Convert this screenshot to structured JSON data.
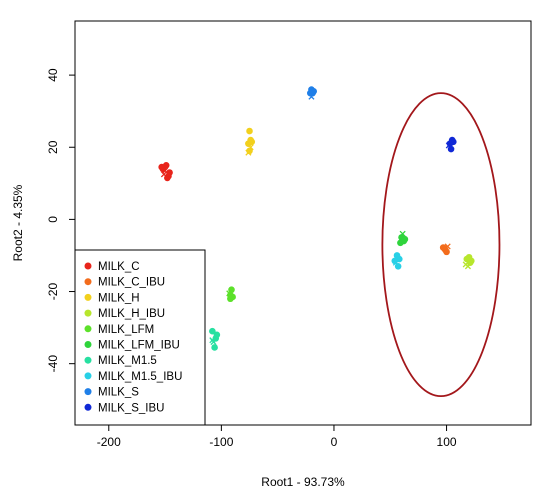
{
  "chart_data": {
    "type": "scatter",
    "title": "",
    "xlabel": "Root1 - 93.73%",
    "ylabel": "Root2 - 4.35%",
    "xlim": [
      -230,
      175
    ],
    "ylim": [
      -57,
      55
    ],
    "xticks": [
      -200,
      -100,
      0,
      100
    ],
    "yticks": [
      -40,
      -20,
      0,
      20,
      40
    ],
    "grid": false,
    "legend_position": "bottom-left",
    "series": [
      {
        "name": "MILK_C",
        "color": "#e8241b",
        "points": [
          [
            -152,
            14
          ],
          [
            -149,
            15
          ],
          [
            -151,
            12.5
          ],
          [
            -148,
            11.5
          ],
          [
            -146,
            13
          ],
          [
            -150,
            13.5
          ],
          [
            -153,
            14.5
          ],
          [
            -147,
            12
          ]
        ]
      },
      {
        "name": "MILK_C_IBU",
        "color": "#f36c1c",
        "points": [
          [
            98,
            -8
          ],
          [
            100,
            -9
          ],
          [
            101,
            -7.5
          ],
          [
            99,
            -8.5
          ],
          [
            97,
            -7.8
          ]
        ]
      },
      {
        "name": "MILK_H",
        "color": "#f2d01d",
        "points": [
          [
            -75,
            24.5
          ],
          [
            -76,
            21
          ],
          [
            -74,
            20
          ],
          [
            -75,
            19
          ],
          [
            -73,
            21.5
          ],
          [
            -76,
            18.5
          ],
          [
            -74,
            22
          ]
        ]
      },
      {
        "name": "MILK_H_IBU",
        "color": "#b7e62c",
        "points": [
          [
            118,
            -11
          ],
          [
            121,
            -12
          ],
          [
            119,
            -13
          ],
          [
            122,
            -11.5
          ],
          [
            120,
            -10.5
          ],
          [
            117,
            -12.5
          ]
        ]
      },
      {
        "name": "MILK_LFM",
        "color": "#5ce12a",
        "points": [
          [
            -92,
            -21
          ],
          [
            -91,
            -19.5
          ],
          [
            -93,
            -20.5
          ],
          [
            -90,
            -21.5
          ],
          [
            -92,
            -22
          ]
        ]
      },
      {
        "name": "MILK_LFM_IBU",
        "color": "#2fd43c",
        "points": [
          [
            60,
            -5
          ],
          [
            62,
            -6
          ],
          [
            61,
            -4
          ],
          [
            63,
            -5.5
          ],
          [
            59,
            -6.5
          ]
        ]
      },
      {
        "name": "MILK_M1.5",
        "color": "#27e0a1",
        "points": [
          [
            -108,
            -31
          ],
          [
            -105,
            -33
          ],
          [
            -107,
            -34
          ],
          [
            -104,
            -32
          ],
          [
            -106,
            -35.5
          ],
          [
            -108,
            -33.5
          ]
        ]
      },
      {
        "name": "MILK_M1.5_IBU",
        "color": "#28d0e6",
        "points": [
          [
            56,
            -10
          ],
          [
            58,
            -11
          ],
          [
            55,
            -12
          ],
          [
            57,
            -13
          ],
          [
            54,
            -11.5
          ]
        ]
      },
      {
        "name": "MILK_S",
        "color": "#1f7fe8",
        "points": [
          [
            -20,
            36
          ],
          [
            -19,
            35
          ],
          [
            -20,
            34
          ],
          [
            -18,
            35.5
          ],
          [
            -21,
            35
          ]
        ]
      },
      {
        "name": "MILK_S_IBU",
        "color": "#1028d6",
        "points": [
          [
            103,
            21
          ],
          [
            105,
            22
          ],
          [
            102,
            20.5
          ],
          [
            104,
            19.5
          ],
          [
            106,
            21.5
          ]
        ]
      }
    ],
    "ellipse": {
      "cx": 95,
      "cy": -7,
      "rx": 52,
      "ry": 42,
      "color": "#a3171b"
    }
  }
}
